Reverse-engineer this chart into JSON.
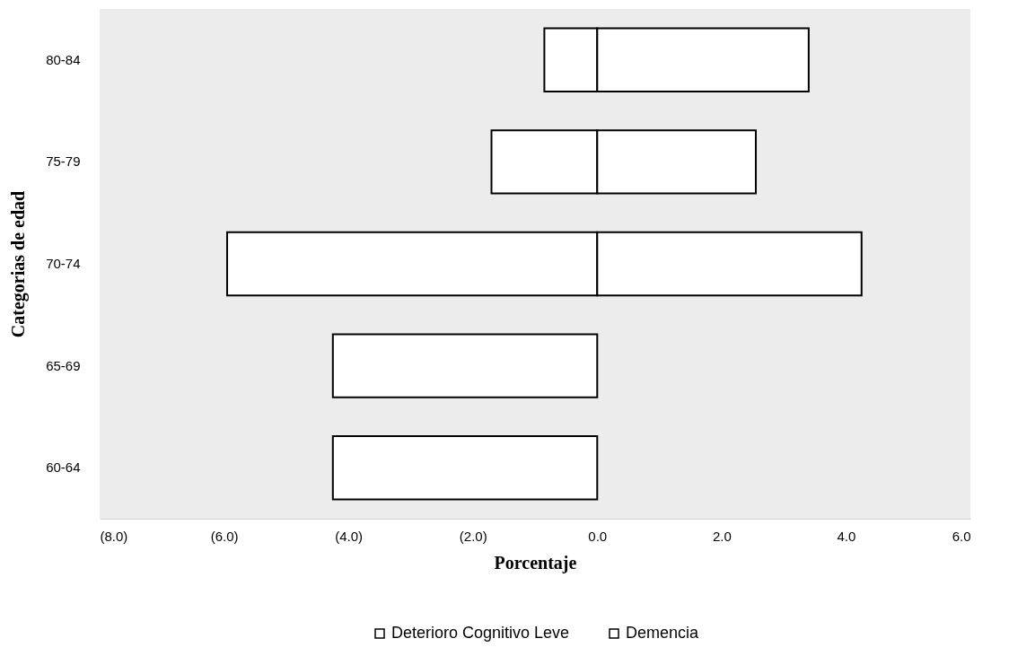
{
  "chart_data": {
    "type": "bar",
    "orientation": "horizontal",
    "xlabel": "Porcentaje",
    "ylabel": "Categorias de edad",
    "categories": [
      "80-84",
      "75-79",
      "70-74",
      "65-69",
      "60-64"
    ],
    "series": [
      {
        "name": "Deterioro Cognitivo Leve",
        "color": "#ffffff",
        "values": [
          -0.85,
          -1.7,
          -5.95,
          -4.25,
          -4.25
        ]
      },
      {
        "name": "Demencia",
        "color": "#ffffff",
        "values": [
          3.4,
          2.55,
          4.25,
          null,
          null
        ]
      }
    ],
    "xlim": [
      -8,
      6
    ],
    "xticks": [
      {
        "value": -8,
        "label": "(8.0)"
      },
      {
        "value": -6,
        "label": "(6.0)"
      },
      {
        "value": -4,
        "label": "(4.0)"
      },
      {
        "value": -2,
        "label": "(2.0)"
      },
      {
        "value": 0,
        "label": "0.0"
      },
      {
        "value": 2,
        "label": "2.0"
      },
      {
        "value": 4,
        "label": "4.0"
      },
      {
        "value": 6,
        "label": "6.0"
      }
    ],
    "stacked": true,
    "grid": false,
    "legend": "bottom"
  }
}
